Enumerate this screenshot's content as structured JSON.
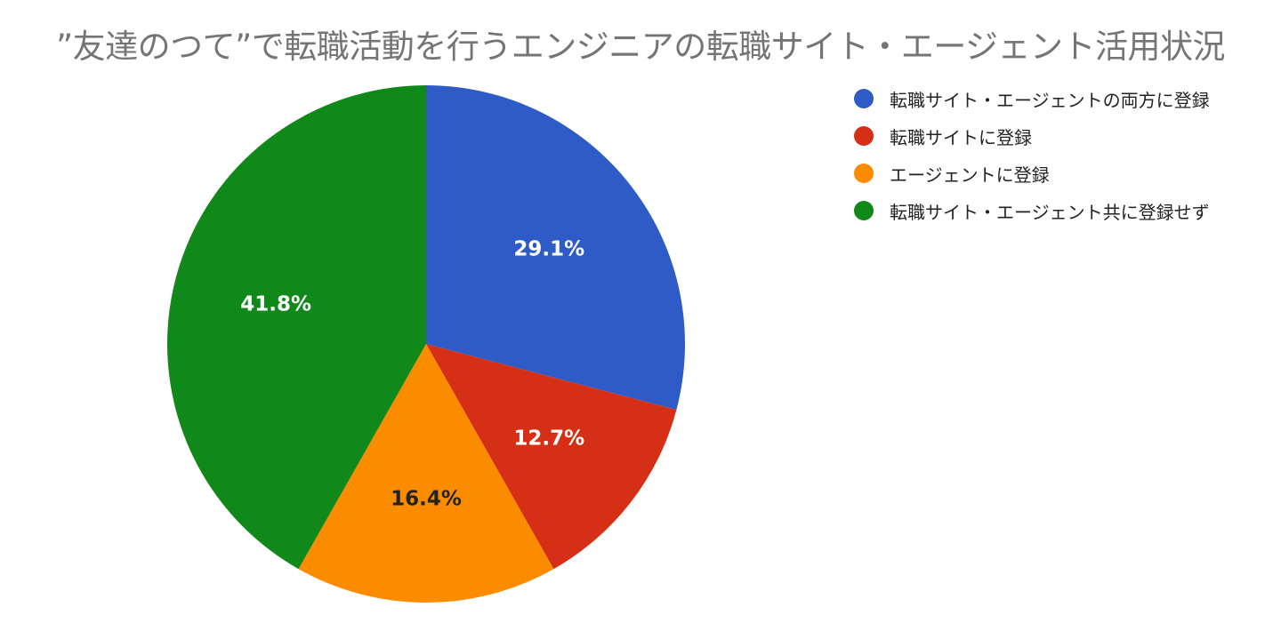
{
  "chart_data": {
    "type": "pie",
    "title": "”友達のつて”で転職活動を行うエンジニアの転職サイト・エージェント活用状況",
    "legend_position": "right",
    "start_angle": "12 o'clock, clockwise",
    "slices": [
      {
        "label": "転職サイト・エージェントの両方に登録",
        "value": 29.1,
        "display": "29.1%",
        "color": "#2E5BC6",
        "text_color": "#FFFFFF"
      },
      {
        "label": "転職サイトに登録",
        "value": 12.7,
        "display": "12.7%",
        "color": "#D53015",
        "text_color": "#FFFFFF"
      },
      {
        "label": "エージェントに登録",
        "value": 16.4,
        "display": "16.4%",
        "color": "#FB8C00",
        "text_color": "#222222"
      },
      {
        "label": "転職サイト・エージェント共に登録せず",
        "value": 41.8,
        "display": "41.8%",
        "color": "#11891A",
        "text_color": "#FFFFFF"
      }
    ]
  }
}
